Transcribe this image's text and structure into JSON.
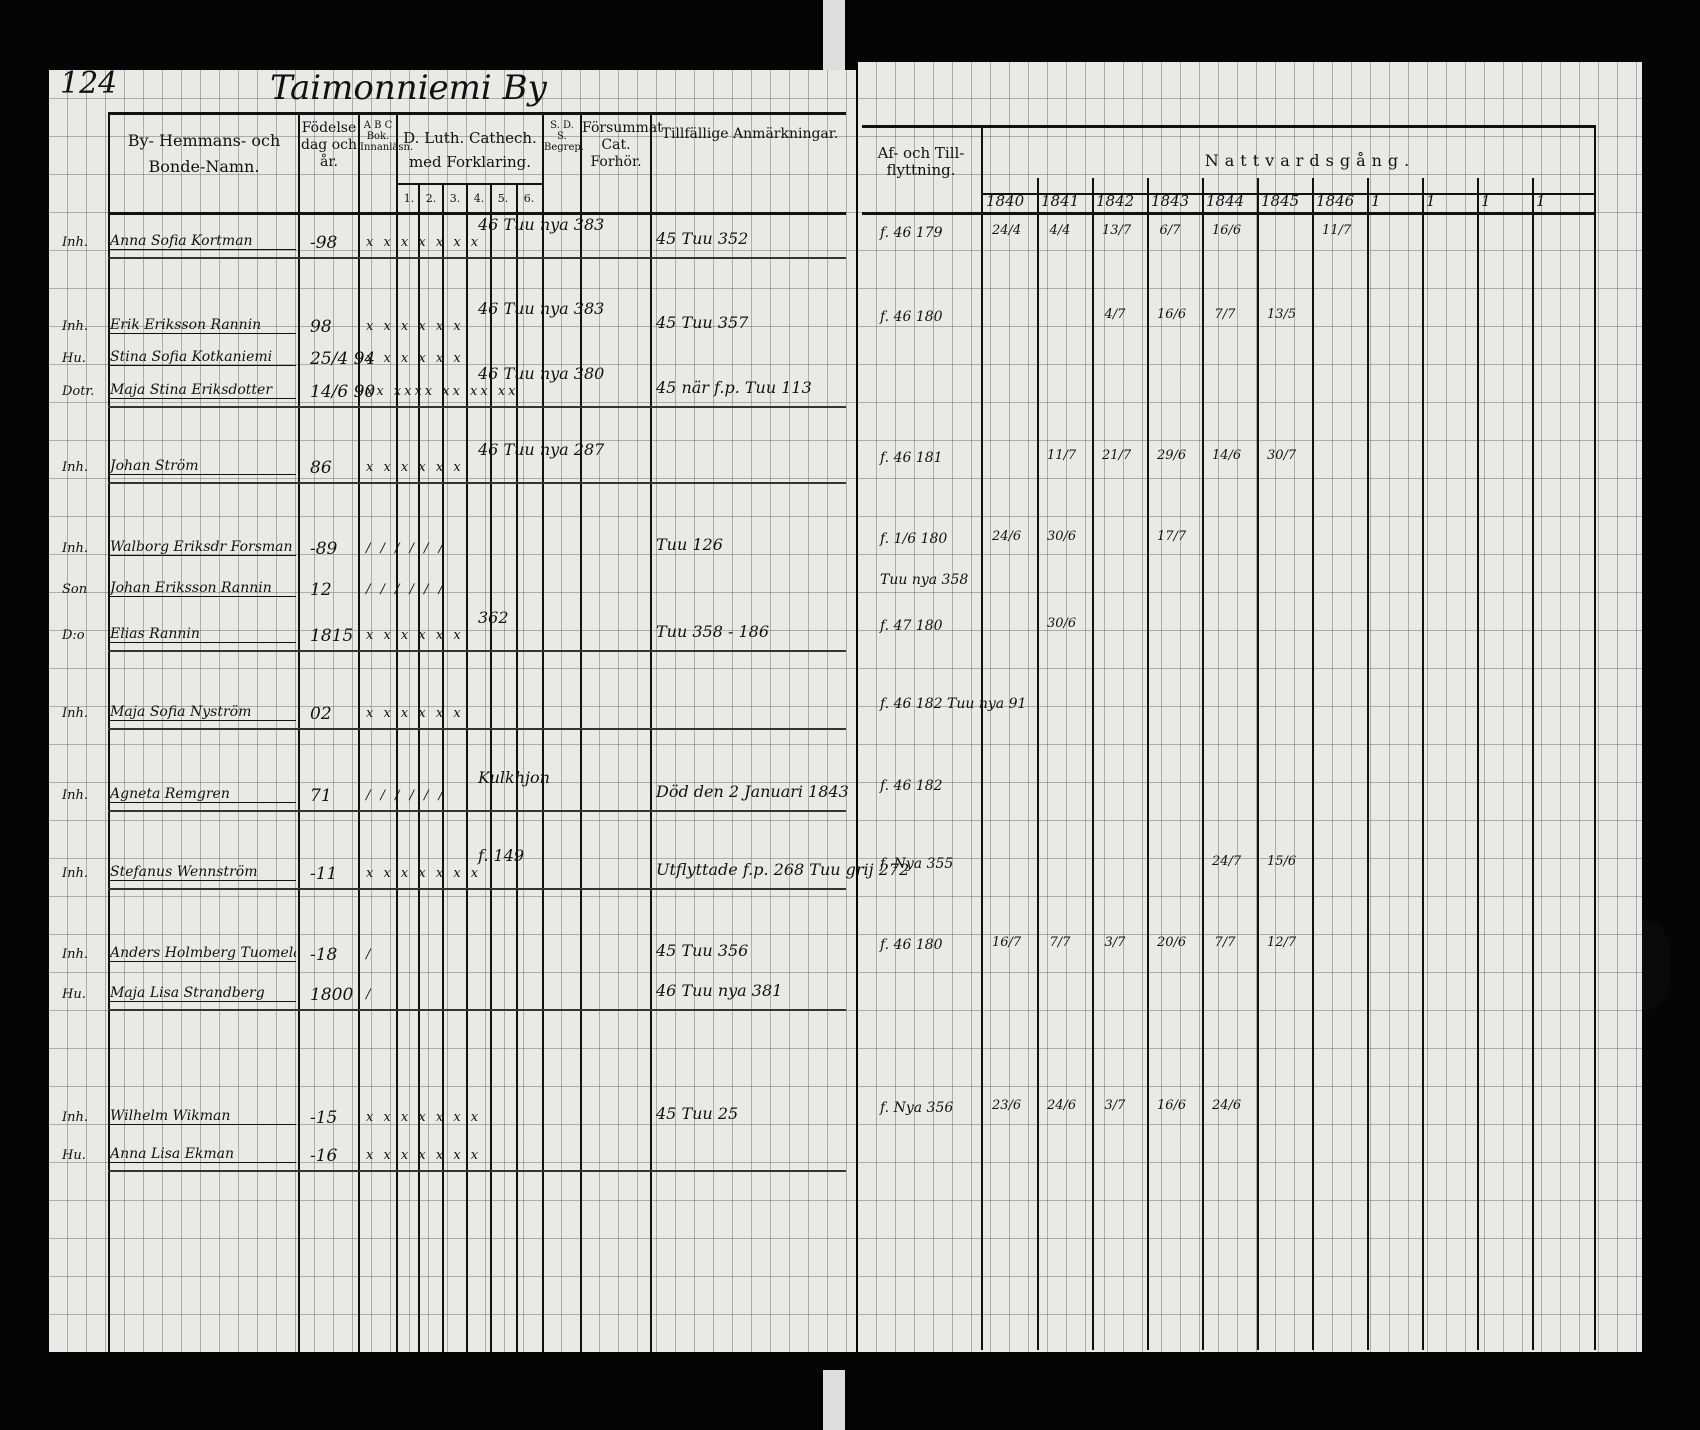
{
  "left_page": {
    "page_number": "124",
    "title": "Taimonniemi By",
    "headers": {
      "name": "By- Hemmans- och Bonde-Namn.",
      "birth": "Födelse dag och år.",
      "abc": "A B C Bok. Innanläsn.",
      "catechism": "D. Luth. Cathech. med Forklaring.",
      "catechism_parts": [
        "1.",
        "2.",
        "3.",
        "4.",
        "5.",
        "6."
      ],
      "sds": "S. D. S. Begrep.",
      "missed": "Försummat Cat. Forhör.",
      "remarks": "Tillfällige Anmärkningar."
    }
  },
  "right_page": {
    "headers": {
      "moves": "Af- och Till-flyttning.",
      "communion": "Nattvardsgång.",
      "years": [
        "1840",
        "1841",
        "1842",
        "1843",
        "1844",
        "1845",
        "1846",
        "1",
        "1",
        "1",
        "1"
      ]
    }
  },
  "rows": [
    {
      "role": "Inh.",
      "name": "Anna Sofia Kortman",
      "birth": "-98",
      "catech": "x x x x x x x",
      "note": "46 Tuu nya 383",
      "remark": "45 Tuu 352",
      "move": "f. 46 179",
      "communion": [
        "24/4",
        "4/4",
        "13/7",
        "6/7",
        "16/6",
        "",
        "11/7"
      ]
    },
    {
      "role": "Inh.",
      "name": "Erik Eriksson Rannin",
      "birth": "98",
      "catech": "x x x x x x",
      "note": "46 Tuu nya 383",
      "remark": "45 Tuu 357",
      "move": "f. 46 180",
      "communion": [
        "",
        "",
        "4/7",
        "16/6",
        "7/7",
        "13/5",
        ""
      ]
    },
    {
      "role": "Hu.",
      "name": "Stina Sofia Kotkaniemi",
      "birth": "25/4 94",
      "catech": "x x x x x x",
      "note": "",
      "remark": "",
      "move": "",
      "communion": []
    },
    {
      "role": "Dotr.",
      "name": "Maja Stina Eriksdotter",
      "birth": "14/6 90",
      "catech": "xx xxxx xx xx xx",
      "note": "46 Tuu nya 380",
      "remark": "45 när f.p. Tuu 113",
      "move": "",
      "communion": []
    },
    {
      "role": "Inh.",
      "name": "Johan Ström",
      "birth": "86",
      "catech": "x x x x x x",
      "note": "46 Tuu nya 287",
      "remark": "",
      "move": "f. 46 181",
      "communion": [
        "",
        "11/7",
        "21/7",
        "29/6",
        "14/6",
        "30/7",
        ""
      ]
    },
    {
      "role": "Inh.",
      "name": "Walborg Eriksdr Forsman",
      "birth": "-89",
      "catech": "/ / / / / /",
      "note": "",
      "remark": "Tuu 126",
      "move": "f. 1/6 180",
      "communion": [
        "24/6",
        "30/6",
        "",
        "17/7",
        "",
        "",
        ""
      ]
    },
    {
      "role": "Son",
      "name": "Johan Eriksson Rannin",
      "birth": "12",
      "catech": "/ / / / / /",
      "note": "",
      "remark": "",
      "move": "Tuu nya 358",
      "communion": []
    },
    {
      "role": "D:o",
      "name": "Elias Rannin",
      "birth": "1815",
      "catech": "x x x x x x",
      "note": "362",
      "remark": "Tuu 358 - 186",
      "move": "f. 47 180",
      "communion": [
        "",
        "30/6",
        "",
        "",
        "",
        "",
        ""
      ]
    },
    {
      "role": "Inh.",
      "name": "Maja Sofia Nyström",
      "birth": "02",
      "catech": "x x x x x x",
      "note": "",
      "remark": "",
      "move": "f. 46 182 Tuu nya 91",
      "communion": []
    },
    {
      "role": "Inh.",
      "name": "Agneta Remgren",
      "birth": "71",
      "catech": "/ / / / / /",
      "note": "Kulkhjon",
      "remark": "Död den 2 Januari 1843",
      "move": "f. 46 182",
      "communion": []
    },
    {
      "role": "Inh.",
      "name": "Stefanus Wennström",
      "birth": "-11",
      "catech": "x x x x x x x",
      "note": "f. 149",
      "remark": "Utflyttade f.p. 268 Tuu grij 272",
      "move": "f. Nya 355",
      "communion": [
        "",
        "",
        "",
        "",
        "24/7",
        "15/6",
        ""
      ]
    },
    {
      "role": "Inh.",
      "name": "Anders Holmberg Tuomela",
      "birth": "-18",
      "catech": "/",
      "note": "",
      "remark": "45 Tuu 356",
      "move": "f. 46 180",
      "communion": [
        "16/7",
        "7/7",
        "3/7",
        "20/6",
        "7/7",
        "12/7",
        ""
      ]
    },
    {
      "role": "Hu.",
      "name": "Maja Lisa Strandberg",
      "birth": "1800",
      "catech": "/",
      "note": "",
      "remark": "46 Tuu nya 381",
      "move": "",
      "communion": []
    },
    {
      "role": "Inh.",
      "name": "Wilhelm Wikman",
      "birth": "-15",
      "catech": "x x x x x x x",
      "note": "",
      "remark": "45 Tuu 25",
      "move": "f. Nya 356",
      "communion": [
        "23/6",
        "24/6",
        "3/7",
        "16/6",
        "24/6",
        "",
        ""
      ]
    },
    {
      "role": "Hu.",
      "name": "Anna Lisa Ekman",
      "birth": "-16",
      "catech": "x x x x x x x",
      "note": "",
      "remark": "",
      "move": "",
      "communion": []
    }
  ]
}
